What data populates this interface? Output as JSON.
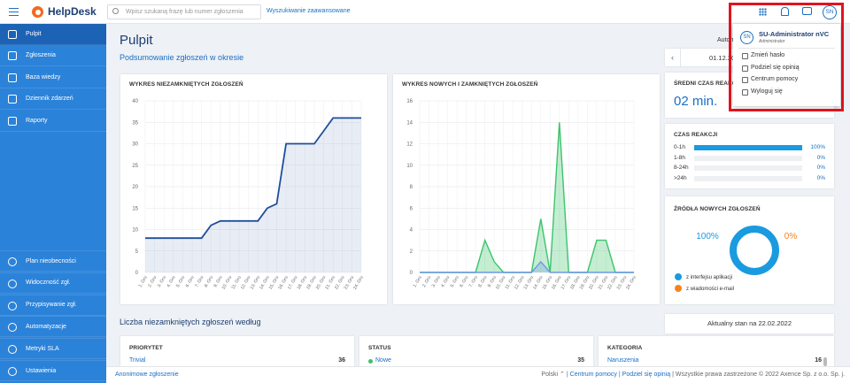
{
  "header": {
    "logo": "HelpDesk",
    "search_placeholder": "Wpisz szukaną frazę lub numer zgłoszenia",
    "advanced_search": "Wyszukiwanie zaawansowane",
    "avatar": "SN"
  },
  "sidebar": {
    "top_items": [
      "Pulpit",
      "Zgłoszenia",
      "Baza wiedzy",
      "Dziennik zdarzeń",
      "Raporty"
    ],
    "bottom_items": [
      "Plan nieobecności",
      "Widoczność zgł.",
      "Przypisywanie zgł.",
      "Automatyzacje",
      "Metryki SLA",
      "Ustawienia"
    ]
  },
  "page": {
    "title": "Pulpit",
    "subtitle": "Podsumowanie zgłoszeń w okresie",
    "auto_label": "Automa",
    "date": "01.12.20"
  },
  "chart_data": [
    {
      "type": "line",
      "title": "WYKRES NIEZAMKNIĘTYCH ZGŁOSZEŃ",
      "categories": [
        "1. Gru",
        "2. Gru",
        "3. Gru",
        "4. Gru",
        "5. Gru",
        "6. Gru",
        "7. Gru",
        "8. Gru",
        "9. Gru",
        "10. Gru",
        "11. Gru",
        "12. Gru",
        "13. Gru",
        "14. Gru",
        "15. Gru",
        "16. Gru",
        "17. Gru",
        "18. Gru",
        "19. Gru",
        "20. Gru",
        "21. Gru",
        "22. Gru",
        "23. Gru",
        "24. Gru"
      ],
      "series": [
        {
          "color": "#1f4e9c",
          "values": [
            8,
            8,
            8,
            8,
            8,
            8,
            8,
            11,
            12,
            12,
            12,
            12,
            12,
            15,
            16,
            30,
            30,
            30,
            30,
            33,
            36,
            36,
            36,
            36
          ]
        }
      ],
      "ylim": [
        0,
        40
      ],
      "yticks": [
        0,
        5,
        10,
        15,
        20,
        25,
        30,
        35,
        40
      ],
      "grid": true,
      "area": true
    },
    {
      "type": "line",
      "title": "WYKRES NOWYCH I ZAMKNIĘTYCH ZGŁOSZEŃ",
      "categories": [
        "1. Gru",
        "2. Gru",
        "3. Gru",
        "4. Gru",
        "5. Gru",
        "6. Gru",
        "7. Gru",
        "8. Gru",
        "9. Gru",
        "10. Gru",
        "11. Gru",
        "12. Gru",
        "13. Gru",
        "14. Gru",
        "15. Gru",
        "16. Gru",
        "17. Gru",
        "18. Gru",
        "19. Gru",
        "20. Gru",
        "21. Gru",
        "22. Gru",
        "23. Gru",
        "24. Gru"
      ],
      "series": [
        {
          "color": "#3cc46b",
          "values": [
            0,
            0,
            0,
            0,
            0,
            0,
            0,
            3,
            1,
            0,
            0,
            0,
            0,
            5,
            0,
            14,
            0,
            0,
            0,
            3,
            3,
            0,
            0,
            0
          ]
        },
        {
          "color": "#6f98e6",
          "values": [
            0,
            0,
            0,
            0,
            0,
            0,
            0,
            0,
            0,
            0,
            0,
            0,
            0,
            1,
            0,
            0,
            0,
            0,
            0,
            0,
            0,
            0,
            0,
            0
          ]
        }
      ],
      "ylim": [
        0,
        16
      ],
      "yticks": [
        0,
        2,
        4,
        6,
        8,
        10,
        12,
        14,
        16
      ],
      "grid": true,
      "area": true
    }
  ],
  "avg_response": {
    "title": "ŚREDNI CZAS REAKC",
    "value": "02 min."
  },
  "response_time": {
    "title": "CZAS REAKCJI",
    "categories": [
      "0-1h",
      "1-8h",
      "8-24h",
      ">24h"
    ],
    "values": [
      100,
      0,
      0,
      0
    ],
    "value_labels": [
      "100%",
      "0%",
      "0%",
      "0%"
    ],
    "color": "#1a9be0"
  },
  "sources": {
    "title": "ŹRÓDŁA NOWYCH ZGŁOSZEŃ",
    "series": [
      {
        "name": "z interfejsu aplikacji",
        "color": "#1a9be0",
        "value": 100,
        "value_label": "100%"
      },
      {
        "name": "z wiadomości e-mail",
        "color": "#f58220",
        "value": 0,
        "value_label": "0%"
      }
    ]
  },
  "open_tickets": {
    "title": "Liczba niezamkniętych zgłoszeń według",
    "as_of": "Aktualny stan na 22.02.2022",
    "cards": [
      {
        "title": "PRIORYTET",
        "rows": [
          {
            "label": "Trivial",
            "count": 36
          }
        ]
      },
      {
        "title": "STATUS",
        "rows": [
          {
            "label": "Nowe",
            "count": 35
          }
        ]
      },
      {
        "title": "KATEGORIA",
        "rows": [
          {
            "label": "Naruszenia",
            "count": 16
          }
        ]
      }
    ]
  },
  "footer": {
    "anonymous": "Anonimowe zgłoszenie",
    "language": "Polski",
    "help": "Centrum pomocy",
    "feedback": "Podziel się opinią",
    "copyright": "Wszystkie prawa zastrzeżone © 2022 Axence Sp. z o.o. Sp. j."
  },
  "user_menu": {
    "avatar": "SN",
    "name": "SU-Administrator nVC",
    "role": "Administrator",
    "items": [
      "Zmień hasło",
      "Podziel się opinią",
      "Centrum pomocy",
      "Wyloguj się"
    ]
  }
}
